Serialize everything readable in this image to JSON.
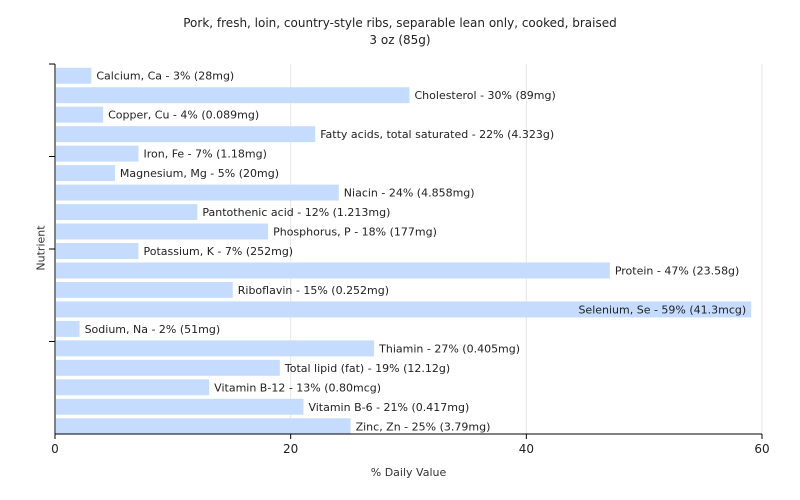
{
  "chart_data": {
    "type": "bar",
    "orientation": "horizontal",
    "title": "Pork, fresh, loin, country-style ribs, separable lean only, cooked, braised",
    "subtitle": "3 oz (85g)",
    "xlabel": "% Daily Value",
    "ylabel": "Nutrient",
    "xlim": [
      0,
      60
    ],
    "xticks": [
      0,
      20,
      40,
      60
    ],
    "grid": true,
    "bar_color": "#c6dcff",
    "categories": [
      "Calcium, Ca",
      "Cholesterol",
      "Copper, Cu",
      "Fatty acids, total saturated",
      "Iron, Fe",
      "Magnesium, Mg",
      "Niacin",
      "Pantothenic acid",
      "Phosphorus, P",
      "Potassium, K",
      "Protein",
      "Riboflavin",
      "Selenium, Se",
      "Sodium, Na",
      "Thiamin",
      "Total lipid (fat)",
      "Vitamin B-12",
      "Vitamin B-6",
      "Zinc, Zn"
    ],
    "values": [
      3,
      30,
      4,
      22,
      7,
      5,
      24,
      12,
      18,
      7,
      47,
      15,
      59,
      2,
      27,
      19,
      13,
      21,
      25
    ],
    "labels": [
      "Calcium, Ca - 3% (28mg)",
      "Cholesterol - 30% (89mg)",
      "Copper, Cu - 4% (0.089mg)",
      "Fatty acids, total saturated - 22% (4.323g)",
      "Iron, Fe - 7% (1.18mg)",
      "Magnesium, Mg - 5% (20mg)",
      "Niacin - 24% (4.858mg)",
      "Pantothenic acid - 12% (1.213mg)",
      "Phosphorus, P - 18% (177mg)",
      "Potassium, K - 7% (252mg)",
      "Protein - 47% (23.58g)",
      "Riboflavin - 15% (0.252mg)",
      "Selenium, Se - 59% (41.3mcg)",
      "Sodium, Na - 2% (51mg)",
      "Thiamin - 27% (0.405mg)",
      "Total lipid (fat) - 19% (12.12g)",
      "Vitamin B-12 - 13% (0.80mcg)",
      "Vitamin B-6 - 21% (0.417mg)",
      "Zinc, Zn - 25% (3.79mg)"
    ]
  }
}
